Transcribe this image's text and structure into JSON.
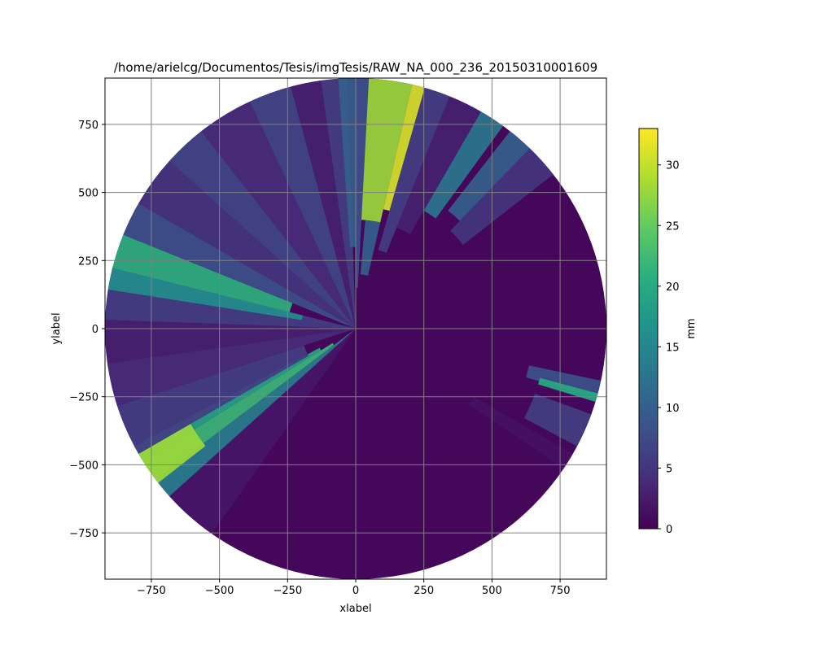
{
  "chart_data": {
    "type": "heatmap",
    "subtype": "polar-radar-sweep",
    "title": "/home/arielcg/Documentos/Tesis/imgTesis/RAW_NA_000_236_20150310001609",
    "xlabel": "xlabel",
    "ylabel": "ylabel",
    "xlim": [
      -920,
      920
    ],
    "ylim": [
      -920,
      920
    ],
    "xticks": [
      -750,
      -500,
      -250,
      0,
      250,
      500,
      750
    ],
    "yticks": [
      -750,
      -500,
      -250,
      0,
      250,
      500,
      750
    ],
    "xtick_labels": [
      "−750",
      "−500",
      "−250",
      "0",
      "250",
      "500",
      "750"
    ],
    "ytick_labels": [
      "−750",
      "−500",
      "−250",
      "0",
      "250",
      "500",
      "750"
    ],
    "grid": true,
    "max_range": 920,
    "colorbar": {
      "label": "mm",
      "colormap": "viridis",
      "range": [
        0,
        33
      ],
      "ticks": [
        0,
        5,
        10,
        15,
        20,
        25,
        30
      ],
      "tick_labels": [
        "0",
        "5",
        "10",
        "15",
        "20",
        "25",
        "30"
      ]
    },
    "background_value": 0.6,
    "sectors": [
      {
        "az_start": 352,
        "az_end": 358,
        "r_start": 0,
        "r_end": 920,
        "value": 6
      },
      {
        "az_start": 356,
        "az_end": 360,
        "r_start": 300,
        "r_end": 920,
        "value": 10
      },
      {
        "az_start": 0,
        "az_end": 3,
        "r_start": 150,
        "r_end": 920,
        "value": 8
      },
      {
        "az_start": 3,
        "az_end": 13,
        "r_start": 400,
        "r_end": 920,
        "value": 28
      },
      {
        "az_start": 13,
        "az_end": 16,
        "r_start": 450,
        "r_end": 920,
        "value": 31
      },
      {
        "az_start": 5,
        "az_end": 13,
        "r_start": 200,
        "r_end": 400,
        "value": 10
      },
      {
        "az_start": 16,
        "az_end": 22,
        "r_start": 300,
        "r_end": 920,
        "value": 6
      },
      {
        "az_start": 22,
        "az_end": 30,
        "r_start": 400,
        "r_end": 920,
        "value": 3
      },
      {
        "az_start": 30,
        "az_end": 36,
        "r_start": 500,
        "r_end": 920,
        "value": 13
      },
      {
        "az_start": 38,
        "az_end": 44,
        "r_start": 550,
        "r_end": 920,
        "value": 10
      },
      {
        "az_start": 44,
        "az_end": 52,
        "r_start": 500,
        "r_end": 920,
        "value": 5
      },
      {
        "az_start": 102,
        "az_end": 106,
        "r_start": 650,
        "r_end": 920,
        "value": 8
      },
      {
        "az_start": 105,
        "az_end": 107,
        "r_start": 700,
        "r_end": 920,
        "value": 20
      },
      {
        "az_start": 110,
        "az_end": 118,
        "r_start": 700,
        "r_end": 920,
        "value": 6
      },
      {
        "az_start": 120,
        "az_end": 124,
        "r_start": 500,
        "r_end": 920,
        "value": 1.5
      },
      {
        "az_start": 215,
        "az_end": 228,
        "r_start": 0,
        "r_end": 920,
        "value": 2
      },
      {
        "az_start": 228,
        "az_end": 233,
        "r_start": 0,
        "r_end": 920,
        "value": 14
      },
      {
        "az_start": 233,
        "az_end": 238,
        "r_start": 100,
        "r_end": 920,
        "value": 22
      },
      {
        "az_start": 238,
        "az_end": 242,
        "r_start": 150,
        "r_end": 920,
        "value": 19
      },
      {
        "az_start": 232,
        "az_end": 240,
        "r_start": 700,
        "r_end": 920,
        "value": 28
      },
      {
        "az_start": 240,
        "az_end": 252,
        "r_start": 200,
        "r_end": 920,
        "value": 6
      },
      {
        "az_start": 252,
        "az_end": 262,
        "r_start": 0,
        "r_end": 920,
        "value": 4
      },
      {
        "az_start": 262,
        "az_end": 272,
        "r_start": 0,
        "r_end": 920,
        "value": 3
      },
      {
        "az_start": 272,
        "az_end": 284,
        "r_start": 0,
        "r_end": 920,
        "value": 6
      },
      {
        "az_start": 279,
        "az_end": 284,
        "r_start": 200,
        "r_end": 920,
        "value": 16
      },
      {
        "az_start": 284,
        "az_end": 292,
        "r_start": 250,
        "r_end": 920,
        "value": 21
      },
      {
        "az_start": 292,
        "az_end": 300,
        "r_start": 0,
        "r_end": 920,
        "value": 8
      },
      {
        "az_start": 300,
        "az_end": 312,
        "r_start": 0,
        "r_end": 920,
        "value": 5
      },
      {
        "az_start": 312,
        "az_end": 322,
        "r_start": 0,
        "r_end": 920,
        "value": 7
      },
      {
        "az_start": 322,
        "az_end": 335,
        "r_start": 0,
        "r_end": 920,
        "value": 4
      },
      {
        "az_start": 335,
        "az_end": 345,
        "r_start": 0,
        "r_end": 920,
        "value": 7
      },
      {
        "az_start": 345,
        "az_end": 352,
        "r_start": 0,
        "r_end": 920,
        "value": 3
      }
    ]
  }
}
